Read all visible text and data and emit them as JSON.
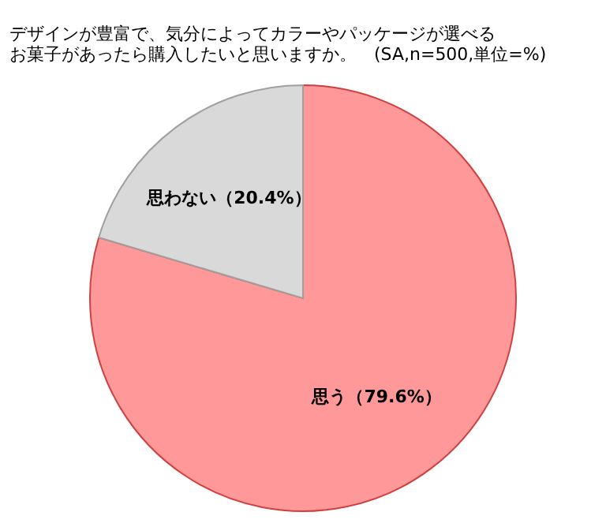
{
  "chart_data": {
    "type": "pie",
    "title": [
      "デザインが豊富で、気分によってカラーやパッケージが選べる",
      "お菓子があったら購入したいと思いますか。　(SA,n=500,単位=%)"
    ],
    "categories": [
      "思う",
      "思わない"
    ],
    "values": [
      79.6,
      20.4
    ],
    "colors": [
      "#ff9999",
      "#d9d9d9"
    ],
    "value_labels": [
      "（79.6%）",
      "（20.4%）"
    ],
    "legend": false
  }
}
